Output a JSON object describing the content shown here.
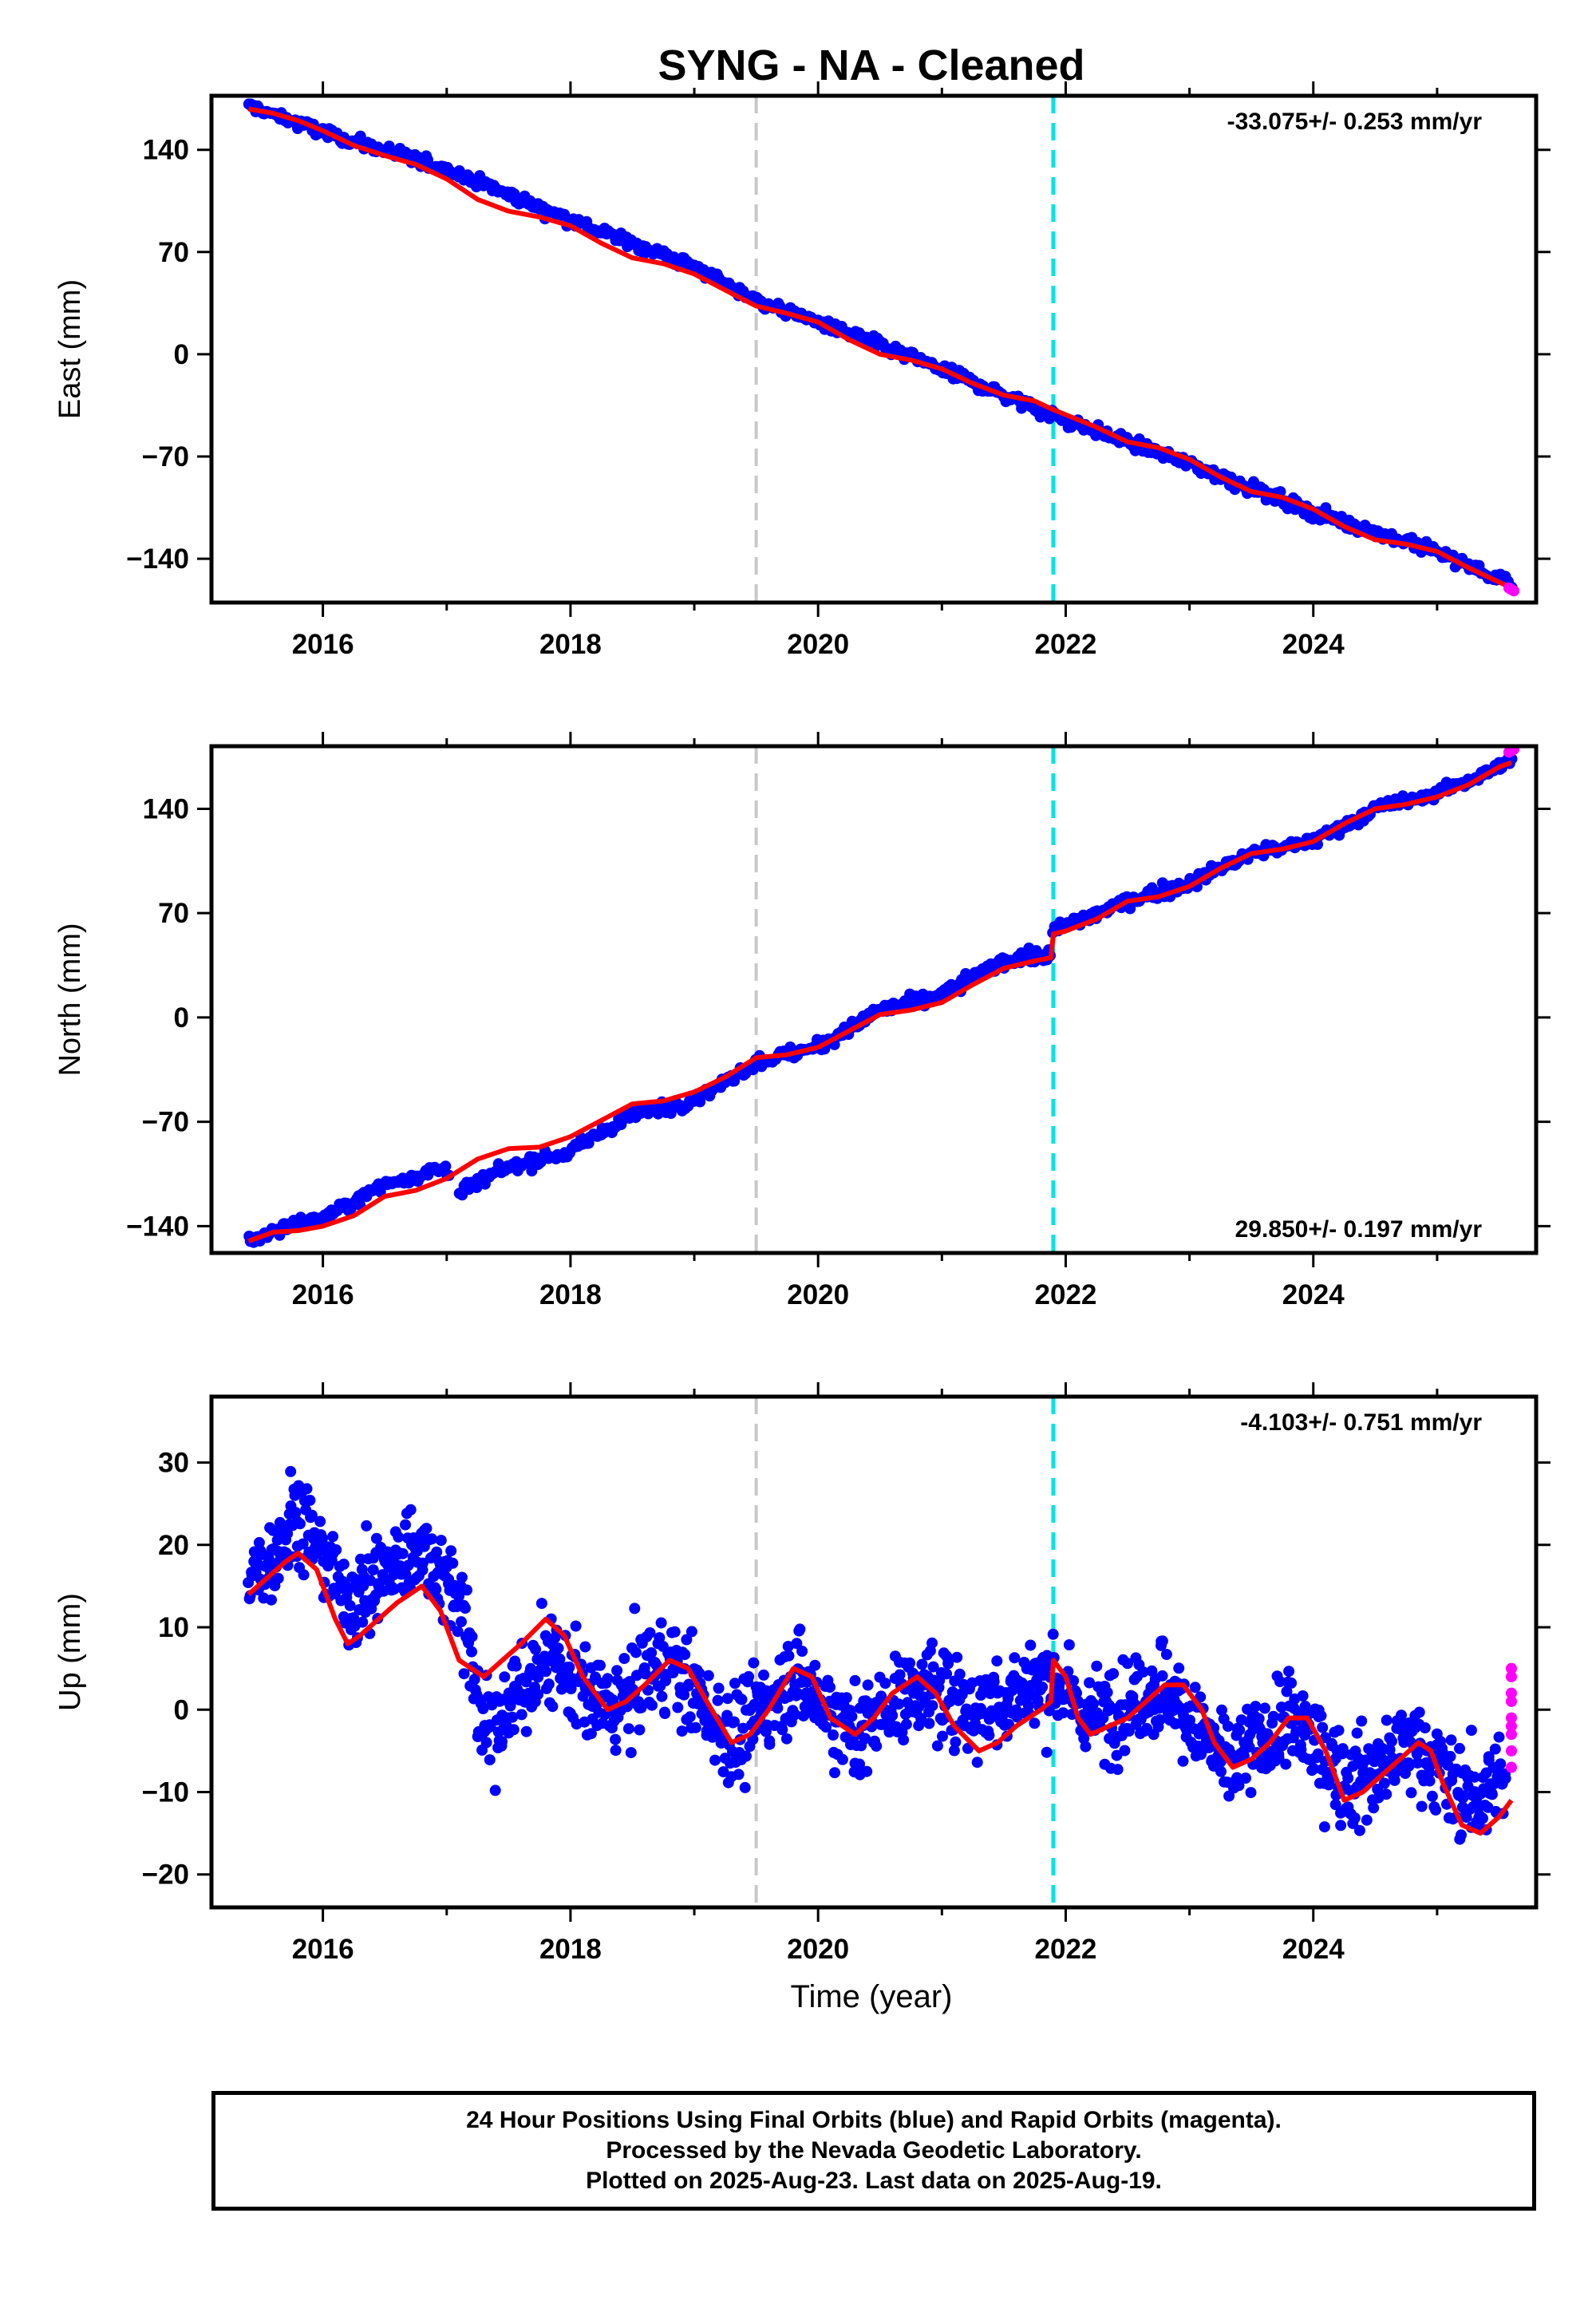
{
  "title": "SYNG  - NA - Cleaned",
  "xlabel": "Time (year)",
  "footnote": [
    "24 Hour Positions Using Final Orbits (blue) and Rapid Orbits (magenta).",
    "Processed by the Nevada Geodetic Laboratory.",
    "Plotted on 2025-Aug-23. Last data on 2025-Aug-19."
  ],
  "colors": {
    "final_orbits": "#0000ff",
    "rapid_orbits": "#ff00ff",
    "model": "#ff0000",
    "gray_line": "#c8c8c8",
    "cyan_line": "#00e5e5"
  },
  "chart_data": [
    {
      "type": "scatter",
      "panel": "east",
      "ylabel": "East (mm)",
      "rate": "-33.075+/- 0.253 mm/yr",
      "rate_position": "top-right",
      "xlim": [
        2015.1,
        2025.8
      ],
      "ylim": [
        -170,
        177
      ],
      "xticks": [
        2016,
        2018,
        2020,
        2022,
        2024
      ],
      "xtick_labels": [
        "2016",
        "2018",
        "2020",
        "2022",
        "2024"
      ],
      "yticks": [
        140,
        70,
        0,
        -70,
        -140
      ],
      "ytick_labels": [
        "140",
        "70",
        "0",
        "−70",
        "−140"
      ],
      "vertical_lines": [
        {
          "x": 2019.5,
          "color": "gray"
        },
        {
          "x": 2021.9,
          "color": "cyan"
        }
      ],
      "series": [
        {
          "role": "final",
          "trend_x": [
            2015.4,
            2016.0,
            2017.0,
            2018.0,
            2019.0,
            2019.5,
            2020.0,
            2021.0,
            2021.9,
            2022.5,
            2023.0,
            2024.0,
            2025.0,
            2025.6
          ],
          "trend_y": [
            170,
            152,
            127,
            92,
            60,
            37,
            22,
            -10,
            -42,
            -60,
            -75,
            -108,
            -135,
            -158
          ],
          "scatter_sd": 3.0,
          "approx_points": 700
        },
        {
          "role": "rapid",
          "x": [
            2025.58,
            2025.6,
            2025.62
          ],
          "y": [
            -160,
            -161,
            -162
          ]
        },
        {
          "role": "model",
          "x": [
            2015.4,
            2015.6,
            2015.8,
            2016.0,
            2016.25,
            2016.5,
            2016.75,
            2017.0,
            2017.25,
            2017.5,
            2017.75,
            2018.0,
            2018.25,
            2018.5,
            2018.75,
            2019.0,
            2019.25,
            2019.5,
            2019.75,
            2020.0,
            2020.25,
            2020.5,
            2020.75,
            2021.0,
            2021.25,
            2021.5,
            2021.75,
            2021.9,
            2022.25,
            2022.5,
            2022.75,
            2023.0,
            2023.25,
            2023.5,
            2023.75,
            2024.0,
            2024.25,
            2024.5,
            2024.75,
            2025.0,
            2025.25,
            2025.5,
            2025.6
          ],
          "y": [
            168,
            165,
            160,
            153,
            143,
            136,
            130,
            120,
            106,
            98,
            94,
            88,
            76,
            66,
            62,
            55,
            44,
            33,
            28,
            22,
            10,
            0,
            -4,
            -10,
            -20,
            -28,
            -32,
            -38,
            -50,
            -60,
            -64,
            -72,
            -84,
            -94,
            -98,
            -106,
            -118,
            -127,
            -130,
            -135,
            -146,
            -156,
            -160
          ]
        }
      ]
    },
    {
      "type": "scatter",
      "panel": "north",
      "ylabel": "North (mm)",
      "rate": "29.850+/- 0.197 mm/yr",
      "rate_position": "bottom-right",
      "xlim": [
        2015.1,
        2025.8
      ],
      "ylim": [
        -158,
        182
      ],
      "xticks": [
        2016,
        2018,
        2020,
        2022,
        2024
      ],
      "xtick_labels": [
        "2016",
        "2018",
        "2020",
        "2022",
        "2024"
      ],
      "yticks": [
        140,
        70,
        0,
        -70,
        -140
      ],
      "ytick_labels": [
        "140",
        "70",
        "0",
        "−70",
        "−140"
      ],
      "vertical_lines": [
        {
          "x": 2019.5,
          "color": "gray"
        },
        {
          "x": 2021.9,
          "color": "cyan"
        }
      ],
      "series": [
        {
          "role": "final",
          "trend_x": [
            2015.4,
            2015.7,
            2016.0,
            2016.5,
            2017.0,
            2017.1,
            2017.5,
            2018.0,
            2018.5,
            2019.0,
            2019.5,
            2020.0,
            2020.5,
            2021.0,
            2021.5,
            2021.88,
            2021.9,
            2022.5,
            2023.0,
            2023.5,
            2024.0,
            2024.5,
            2025.0,
            2025.6
          ],
          "trend_y": [
            -150,
            -140,
            -135,
            -112,
            -100,
            -118,
            -100,
            -90,
            -65,
            -55,
            -30,
            -20,
            5,
            15,
            38,
            42,
            58,
            78,
            90,
            110,
            118,
            140,
            150,
            172
          ],
          "scatter_sd": 3.0,
          "approx_points": 700
        },
        {
          "role": "rapid",
          "x": [
            2025.58,
            2025.6,
            2025.62
          ],
          "y": [
            178,
            179,
            180
          ]
        },
        {
          "role": "model",
          "x": [
            2015.4,
            2015.6,
            2015.8,
            2016.0,
            2016.25,
            2016.5,
            2016.75,
            2017.0,
            2017.25,
            2017.5,
            2017.75,
            2018.0,
            2018.25,
            2018.5,
            2018.75,
            2019.0,
            2019.25,
            2019.5,
            2019.75,
            2020.0,
            2020.25,
            2020.5,
            2020.75,
            2021.0,
            2021.25,
            2021.5,
            2021.75,
            2021.88,
            2021.9,
            2022.0,
            2022.25,
            2022.5,
            2022.75,
            2023.0,
            2023.25,
            2023.5,
            2023.75,
            2024.0,
            2024.25,
            2024.5,
            2024.75,
            2025.0,
            2025.25,
            2025.5,
            2025.6
          ],
          "y": [
            -150,
            -144,
            -143,
            -140,
            -133,
            -120,
            -116,
            -108,
            -95,
            -88,
            -87,
            -80,
            -69,
            -58,
            -56,
            -50,
            -40,
            -27,
            -25,
            -20,
            -9,
            2,
            5,
            10,
            22,
            33,
            38,
            40,
            56,
            58,
            66,
            78,
            81,
            88,
            100,
            110,
            113,
            118,
            130,
            140,
            143,
            148,
            156,
            168,
            171
          ]
        }
      ]
    },
    {
      "type": "scatter",
      "panel": "up",
      "ylabel": "Up (mm)",
      "rate": "-4.103+/- 0.751 mm/yr",
      "rate_position": "top-right",
      "xlim": [
        2015.1,
        2025.8
      ],
      "ylim": [
        -24,
        38
      ],
      "xticks": [
        2016,
        2018,
        2020,
        2022,
        2024
      ],
      "xtick_labels": [
        "2016",
        "2018",
        "2020",
        "2022",
        "2024"
      ],
      "yticks": [
        30,
        20,
        10,
        0,
        -10,
        -20
      ],
      "ytick_labels": [
        "30",
        "20",
        "10",
        "0",
        "−10",
        "−20"
      ],
      "vertical_lines": [
        {
          "x": 2019.5,
          "color": "gray"
        },
        {
          "x": 2021.9,
          "color": "cyan"
        }
      ],
      "series": [
        {
          "role": "final",
          "trend_x": [
            2015.4,
            2015.8,
            2016.2,
            2016.8,
            2017.1,
            2017.3,
            2017.8,
            2018.3,
            2018.8,
            2019.3,
            2019.8,
            2020.3,
            2020.8,
            2021.3,
            2021.9,
            2022.2,
            2022.8,
            2023.3,
            2023.8,
            2024.3,
            2024.8,
            2025.3,
            2025.55
          ],
          "trend_y": [
            15,
            24,
            13,
            20,
            14,
            -3,
            6,
            0,
            6,
            -4,
            4,
            -3,
            3,
            0,
            4,
            -1,
            3,
            -7,
            -1,
            -9,
            -4,
            -11,
            -9
          ],
          "scatter_sd": 4.0,
          "approx_points": 1500
        },
        {
          "role": "rapid",
          "x": [
            2025.6,
            2025.6,
            2025.6,
            2025.6,
            2025.6,
            2025.6,
            2025.6,
            2025.6,
            2025.6
          ],
          "y": [
            5,
            4,
            2,
            1,
            -1,
            -2,
            -3,
            -5,
            -7
          ]
        },
        {
          "role": "model",
          "x": [
            2015.4,
            2015.55,
            2015.7,
            2015.8,
            2015.95,
            2016.1,
            2016.2,
            2016.3,
            2016.45,
            2016.6,
            2016.8,
            2016.95,
            2017.1,
            2017.3,
            2017.45,
            2017.6,
            2017.8,
            2017.95,
            2018.1,
            2018.3,
            2018.45,
            2018.6,
            2018.8,
            2018.95,
            2019.1,
            2019.3,
            2019.45,
            2019.6,
            2019.8,
            2019.95,
            2020.1,
            2020.3,
            2020.45,
            2020.6,
            2020.8,
            2020.95,
            2021.1,
            2021.3,
            2021.45,
            2021.6,
            2021.8,
            2021.88,
            2021.9,
            2022.0,
            2022.1,
            2022.2,
            2022.35,
            2022.5,
            2022.65,
            2022.8,
            2022.95,
            2023.1,
            2023.2,
            2023.35,
            2023.5,
            2023.65,
            2023.8,
            2023.95,
            2024.1,
            2024.25,
            2024.4,
            2024.55,
            2024.7,
            2024.85,
            2024.95,
            2025.05,
            2025.2,
            2025.35,
            2025.5,
            2025.6
          ],
          "y": [
            14,
            16,
            18,
            19,
            17,
            11,
            8,
            9,
            11,
            13,
            15,
            12,
            6,
            4,
            6,
            8,
            11,
            9,
            4,
            0,
            1,
            3,
            6,
            5,
            1,
            -4,
            -3,
            0,
            5,
            4,
            -1,
            -3,
            -1,
            2,
            4,
            2,
            -2,
            -5,
            -4,
            -2,
            0,
            1,
            6,
            4,
            -1,
            -3,
            -2,
            -1,
            1,
            3,
            3,
            0,
            -4,
            -7,
            -6,
            -4,
            -1,
            -1,
            -5,
            -11,
            -10,
            -8,
            -6,
            -4,
            -5,
            -9,
            -14,
            -15,
            -13,
            -11
          ]
        }
      ]
    }
  ]
}
